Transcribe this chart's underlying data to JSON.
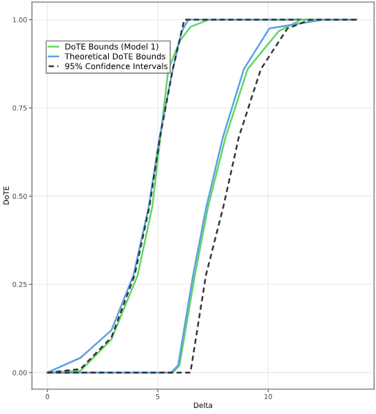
{
  "chart_data": {
    "type": "line",
    "xlabel": "Delta",
    "ylabel": "DoTE",
    "xlim": [
      -0.7,
      14.8
    ],
    "ylim": [
      -0.047,
      1.05
    ],
    "xticks": [
      0,
      5,
      10
    ],
    "yticks": [
      {
        "value": 0,
        "label": "0.00"
      },
      {
        "value": 0.25,
        "label": "0.25"
      },
      {
        "value": 0.5,
        "label": "0.50"
      },
      {
        "value": 0.75,
        "label": "0.75"
      },
      {
        "value": 1,
        "label": "1.00"
      }
    ],
    "grid": true,
    "legend": "top left",
    "marker": "none",
    "series": [
      {
        "name": "DoTE Bounds (Model 1)",
        "color": "#5ed65e",
        "line_style": "solid",
        "x": [
          0,
          1.5,
          2.9,
          4.09,
          4.75,
          5.48,
          6.0,
          6.48,
          7.3,
          14
        ],
        "values": [
          0,
          0.005,
          0.094,
          0.276,
          0.47,
          0.86,
          0.94,
          0.98,
          1,
          1
        ]
      },
      {
        "name": "Theoretical DoTE Bounds",
        "color": "#5b9ee8",
        "line_style": "solid",
        "x": [
          0,
          1.5,
          2.9,
          3.9,
          4.59,
          5.08,
          5.68,
          6.08,
          6.38,
          14
        ],
        "values": [
          0,
          0.042,
          0.12,
          0.276,
          0.47,
          0.667,
          0.86,
          0.966,
          1,
          1
        ]
      },
      {
        "name": "95% Confidence Intervals",
        "color": "#333333",
        "line_style": "dashed",
        "x": [
          0,
          1.5,
          2.9,
          3.95,
          4.62,
          5.1,
          5.68,
          6.2,
          14
        ],
        "values": [
          0,
          0.01,
          0.1,
          0.276,
          0.47,
          0.667,
          0.86,
          1,
          1
        ]
      },
      {
        "color": "#5ed65e",
        "line_style": "solid",
        "x": [
          0,
          5.68,
          5.98,
          6.68,
          7.28,
          8.07,
          9.07,
          10.47,
          11.5,
          14
        ],
        "values": [
          0,
          0,
          0.02,
          0.276,
          0.47,
          0.667,
          0.86,
          0.967,
          1,
          1
        ]
      },
      {
        "color": "#5b9ee8",
        "line_style": "solid",
        "x": [
          0,
          5.6,
          5.92,
          6.6,
          7.2,
          7.95,
          8.9,
          10.05,
          12.5,
          14
        ],
        "values": [
          0,
          0,
          0.02,
          0.276,
          0.47,
          0.667,
          0.86,
          0.975,
          1,
          1
        ]
      },
      {
        "color": "#333333",
        "line_style": "dashed",
        "x": [
          0,
          6.48,
          7.18,
          7.97,
          8.67,
          9.67,
          10.87,
          11.9,
          14
        ],
        "values": [
          0,
          0,
          0.276,
          0.47,
          0.667,
          0.86,
          0.975,
          1,
          1
        ]
      }
    ]
  }
}
